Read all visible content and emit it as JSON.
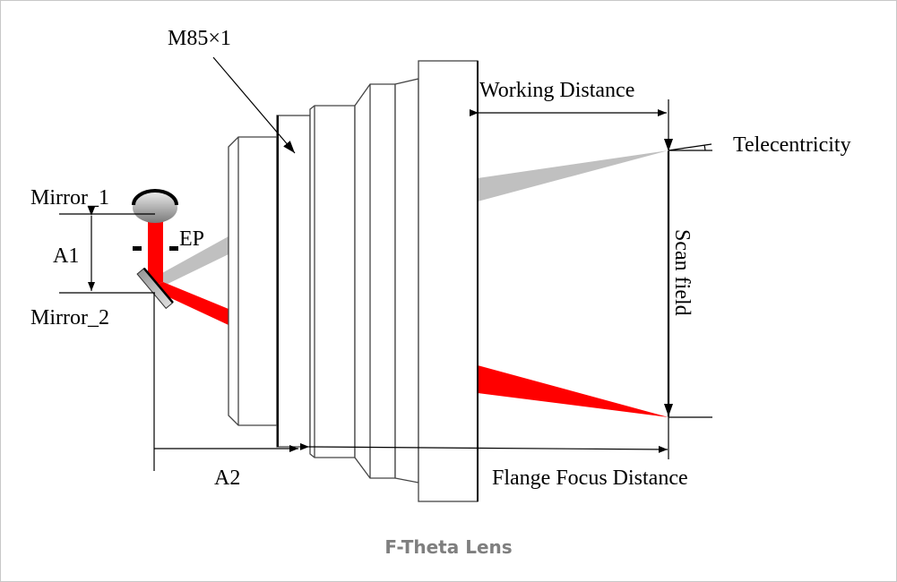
{
  "caption": "F-Theta Lens",
  "labels": {
    "thread": "M85×1",
    "working_distance": "Working Distance",
    "telecentricity": "Telecentricity",
    "mirror_1": "Mirror_1",
    "mirror_2": "Mirror_2",
    "a1": "A1",
    "a2": "A2",
    "ep": "EP",
    "scan_field": "Scan field",
    "flange_focus_distance": "Flange Focus Distance"
  },
  "colors": {
    "laser_beam": "#ff0000",
    "deflected_beam": "#c0c0c0",
    "caption": "#7f7f7f"
  }
}
